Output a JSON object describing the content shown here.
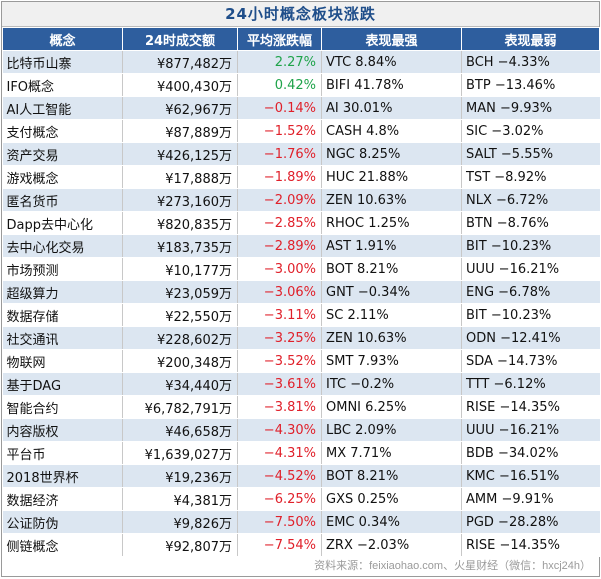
{
  "title": "24小时概念板块涨跌",
  "headers": [
    "概念",
    "24时成交额",
    "平均涨跌幅",
    "表现最强",
    "表现最弱"
  ],
  "rows": [
    {
      "name": "比特币山寨",
      "volume": "¥877,482万",
      "change": "2.27%",
      "dir": "pos",
      "best": "VTC 8.84%",
      "worst": "BCH −4.33%"
    },
    {
      "name": "IFO概念",
      "volume": "¥400,430万",
      "change": "0.42%",
      "dir": "pos",
      "best": "BIFI 41.78%",
      "worst": "BTP −13.46%"
    },
    {
      "name": "AI人工智能",
      "volume": "¥62,967万",
      "change": "−0.14%",
      "dir": "neg",
      "best": "AI 30.01%",
      "worst": "MAN −9.93%"
    },
    {
      "name": "支付概念",
      "volume": "¥87,889万",
      "change": "−1.52%",
      "dir": "neg",
      "best": "CASH 4.8%",
      "worst": "SIC −3.02%"
    },
    {
      "name": "资产交易",
      "volume": "¥426,125万",
      "change": "−1.76%",
      "dir": "neg",
      "best": "NGC 8.25%",
      "worst": "SALT −5.55%"
    },
    {
      "name": "游戏概念",
      "volume": "¥17,888万",
      "change": "−1.89%",
      "dir": "neg",
      "best": "HUC 21.88%",
      "worst": "TST −8.92%"
    },
    {
      "name": "匿名货币",
      "volume": "¥273,160万",
      "change": "−2.09%",
      "dir": "neg",
      "best": "ZEN 10.63%",
      "worst": "NLX −6.72%"
    },
    {
      "name": "Dapp去中心化",
      "volume": "¥820,835万",
      "change": "−2.85%",
      "dir": "neg",
      "best": "RHOC 1.25%",
      "worst": "BTN −8.76%"
    },
    {
      "name": "去中心化交易",
      "volume": "¥183,735万",
      "change": "−2.89%",
      "dir": "neg",
      "best": "AST 1.91%",
      "worst": "BIT −10.23%"
    },
    {
      "name": "市场预测",
      "volume": "¥10,177万",
      "change": "−3.00%",
      "dir": "neg",
      "best": "BOT 8.21%",
      "worst": "UUU −16.21%"
    },
    {
      "name": "超级算力",
      "volume": "¥23,059万",
      "change": "−3.06%",
      "dir": "neg",
      "best": "GNT −0.34%",
      "worst": "ENG −6.78%"
    },
    {
      "name": "数据存储",
      "volume": "¥22,550万",
      "change": "−3.11%",
      "dir": "neg",
      "best": "SC 2.11%",
      "worst": "BIT −10.23%"
    },
    {
      "name": "社交通讯",
      "volume": "¥228,602万",
      "change": "−3.25%",
      "dir": "neg",
      "best": "ZEN 10.63%",
      "worst": "ODN −12.41%"
    },
    {
      "name": "物联网",
      "volume": "¥200,348万",
      "change": "−3.52%",
      "dir": "neg",
      "best": "SMT 7.93%",
      "worst": "SDA −14.73%"
    },
    {
      "name": "基于DAG",
      "volume": "¥34,440万",
      "change": "−3.61%",
      "dir": "neg",
      "best": "ITC −0.2%",
      "worst": "TTT −6.12%"
    },
    {
      "name": "智能合约",
      "volume": "¥6,782,791万",
      "change": "−3.81%",
      "dir": "neg",
      "best": "OMNI 6.25%",
      "worst": "RISE −14.35%"
    },
    {
      "name": "内容版权",
      "volume": "¥46,658万",
      "change": "−4.30%",
      "dir": "neg",
      "best": "LBC 2.09%",
      "worst": "UUU −16.21%"
    },
    {
      "name": "平台币",
      "volume": "¥1,639,027万",
      "change": "−4.31%",
      "dir": "neg",
      "best": "MX 7.71%",
      "worst": "BDB −34.02%"
    },
    {
      "name": "2018世界杯",
      "volume": "¥19,236万",
      "change": "−4.52%",
      "dir": "neg",
      "best": "BOT 8.21%",
      "worst": "KMC −16.51%"
    },
    {
      "name": "数据经济",
      "volume": "¥4,381万",
      "change": "−6.25%",
      "dir": "neg",
      "best": "GXS 0.25%",
      "worst": "AMM −9.91%"
    },
    {
      "name": "公证防伪",
      "volume": "¥9,826万",
      "change": "−7.50%",
      "dir": "neg",
      "best": "EMC 0.34%",
      "worst": "PGD −28.28%"
    },
    {
      "name": "侧链概念",
      "volume": "¥92,807万",
      "change": "−7.54%",
      "dir": "neg",
      "best": "ZRX −2.03%",
      "worst": "RISE −14.35%"
    }
  ],
  "footer": "资料来源：feixiaohao.com、火星财经（微信：hxcj24h）",
  "colors": {
    "header_bg": "#2e5e9e",
    "title": "#1f4e8a",
    "stripe": "#dce6f1",
    "positive": "#1fa34a",
    "negative": "#e0202a"
  }
}
